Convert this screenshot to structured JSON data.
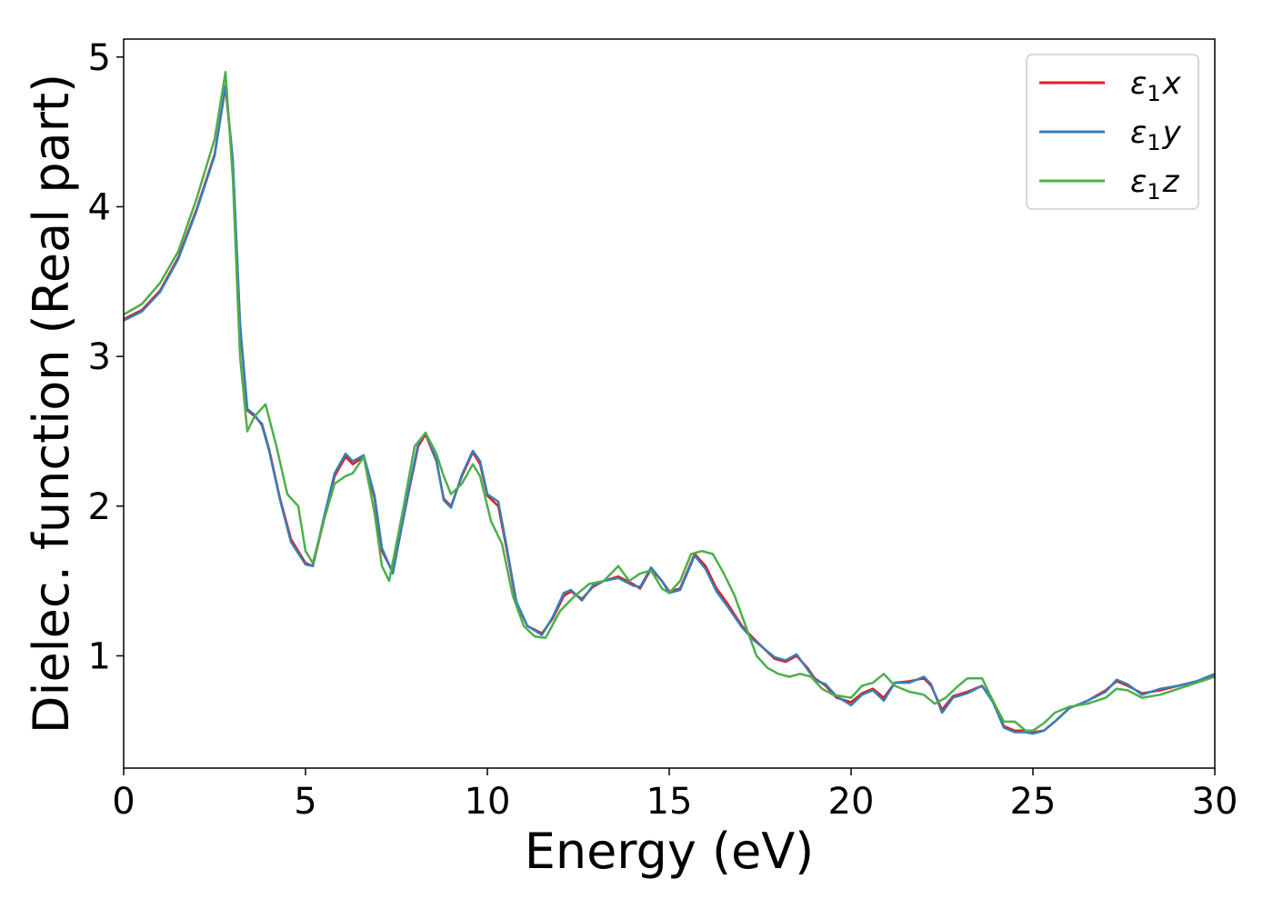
{
  "chart_data": {
    "type": "line",
    "title": "",
    "xlabel": "Energy (eV)",
    "ylabel": "Dielec. function (Real part)",
    "xlim": [
      0,
      30
    ],
    "ylim": [
      0.25,
      5.12
    ],
    "xticks": [
      0,
      5,
      10,
      15,
      20,
      25,
      30
    ],
    "yticks": [
      1,
      2,
      3,
      4,
      5
    ],
    "grid": false,
    "legend_position": "top-right",
    "legend": [
      {
        "base": "ε",
        "sub": "1",
        "axis": "x"
      },
      {
        "base": "ε",
        "sub": "1",
        "axis": "y"
      },
      {
        "base": "ε",
        "sub": "1",
        "axis": "z"
      }
    ],
    "series": [
      {
        "name": "ε1x",
        "color": "#e41a1c",
        "x": [
          0,
          0.5,
          1,
          1.5,
          2,
          2.5,
          2.8,
          3.0,
          3.2,
          3.4,
          3.6,
          3.8,
          4.0,
          4.3,
          4.6,
          5.0,
          5.2,
          5.5,
          5.8,
          6.1,
          6.3,
          6.6,
          6.9,
          7.1,
          7.4,
          7.8,
          8.1,
          8.3,
          8.6,
          8.8,
          9.0,
          9.3,
          9.6,
          9.8,
          10.0,
          10.3,
          10.5,
          10.8,
          11.1,
          11.5,
          11.8,
          12.1,
          12.3,
          12.6,
          12.9,
          13.2,
          13.6,
          14.0,
          14.2,
          14.5,
          14.8,
          15.0,
          15.3,
          15.7,
          16.0,
          16.3,
          16.6,
          17.0,
          17.3,
          17.6,
          17.9,
          18.2,
          18.5,
          18.8,
          19.0,
          19.3,
          19.6,
          20.0,
          20.3,
          20.6,
          20.9,
          21.2,
          21.6,
          22.0,
          22.2,
          22.5,
          22.8,
          23.2,
          23.6,
          23.9,
          24.2,
          24.5,
          24.8,
          25.0,
          25.3,
          25.6,
          26.0,
          26.5,
          27.0,
          27.3,
          27.6,
          28.0,
          28.5,
          29.0,
          29.5,
          30.0
        ],
        "y": [
          3.25,
          3.31,
          3.44,
          3.66,
          3.98,
          4.35,
          4.8,
          4.3,
          3.2,
          2.64,
          2.6,
          2.55,
          2.38,
          2.05,
          1.78,
          1.62,
          1.6,
          1.9,
          2.2,
          2.33,
          2.28,
          2.33,
          2.05,
          1.7,
          1.56,
          2.05,
          2.4,
          2.48,
          2.3,
          2.05,
          2.0,
          2.2,
          2.36,
          2.28,
          2.07,
          2.0,
          1.75,
          1.35,
          1.2,
          1.15,
          1.25,
          1.4,
          1.43,
          1.38,
          1.46,
          1.5,
          1.53,
          1.48,
          1.45,
          1.58,
          1.5,
          1.43,
          1.45,
          1.68,
          1.6,
          1.45,
          1.35,
          1.2,
          1.12,
          1.05,
          0.98,
          0.96,
          1.0,
          0.92,
          0.85,
          0.8,
          0.72,
          0.69,
          0.75,
          0.78,
          0.72,
          0.82,
          0.83,
          0.85,
          0.8,
          0.64,
          0.73,
          0.76,
          0.8,
          0.7,
          0.53,
          0.5,
          0.5,
          0.49,
          0.5,
          0.56,
          0.65,
          0.7,
          0.77,
          0.83,
          0.8,
          0.75,
          0.77,
          0.8,
          0.83,
          0.87
        ]
      },
      {
        "name": "ε1y",
        "color": "#377eb8",
        "x": [
          0,
          0.5,
          1,
          1.5,
          2,
          2.5,
          2.8,
          3.0,
          3.2,
          3.4,
          3.6,
          3.8,
          4.0,
          4.3,
          4.6,
          5.0,
          5.2,
          5.5,
          5.8,
          6.1,
          6.3,
          6.6,
          6.9,
          7.1,
          7.4,
          7.8,
          8.1,
          8.3,
          8.6,
          8.8,
          9.0,
          9.3,
          9.6,
          9.8,
          10.0,
          10.3,
          10.5,
          10.8,
          11.1,
          11.5,
          11.8,
          12.1,
          12.3,
          12.6,
          12.9,
          13.2,
          13.6,
          14.0,
          14.2,
          14.5,
          14.8,
          15.0,
          15.3,
          15.7,
          16.0,
          16.3,
          16.6,
          17.0,
          17.3,
          17.6,
          17.9,
          18.2,
          18.5,
          18.8,
          19.0,
          19.3,
          19.6,
          20.0,
          20.3,
          20.6,
          20.9,
          21.2,
          21.6,
          22.0,
          22.2,
          22.5,
          22.8,
          23.2,
          23.6,
          23.9,
          24.2,
          24.5,
          24.8,
          25.0,
          25.3,
          25.6,
          26.0,
          26.5,
          27.0,
          27.3,
          27.6,
          28.0,
          28.5,
          29.0,
          29.5,
          30.0
        ],
        "y": [
          3.24,
          3.3,
          3.43,
          3.65,
          3.97,
          4.34,
          4.81,
          4.32,
          3.22,
          2.65,
          2.61,
          2.54,
          2.37,
          2.04,
          1.76,
          1.61,
          1.6,
          1.92,
          2.22,
          2.35,
          2.3,
          2.34,
          2.07,
          1.72,
          1.55,
          2.06,
          2.42,
          2.49,
          2.31,
          2.04,
          1.99,
          2.21,
          2.37,
          2.3,
          2.08,
          2.03,
          1.77,
          1.36,
          1.2,
          1.14,
          1.26,
          1.42,
          1.44,
          1.37,
          1.47,
          1.5,
          1.52,
          1.47,
          1.46,
          1.59,
          1.5,
          1.42,
          1.44,
          1.67,
          1.58,
          1.43,
          1.33,
          1.19,
          1.11,
          1.05,
          0.99,
          0.97,
          1.01,
          0.91,
          0.84,
          0.81,
          0.73,
          0.67,
          0.74,
          0.77,
          0.7,
          0.82,
          0.82,
          0.86,
          0.81,
          0.62,
          0.72,
          0.75,
          0.8,
          0.69,
          0.52,
          0.49,
          0.49,
          0.48,
          0.5,
          0.56,
          0.65,
          0.7,
          0.76,
          0.84,
          0.81,
          0.74,
          0.78,
          0.8,
          0.83,
          0.88
        ]
      },
      {
        "name": "ε1z",
        "color": "#4daf4a",
        "x": [
          0,
          0.5,
          1,
          1.5,
          2,
          2.5,
          2.8,
          3.0,
          3.2,
          3.4,
          3.6,
          3.9,
          4.2,
          4.5,
          4.8,
          5.0,
          5.2,
          5.5,
          5.8,
          6.1,
          6.3,
          6.6,
          6.9,
          7.1,
          7.3,
          7.7,
          8.0,
          8.3,
          8.6,
          8.8,
          9.0,
          9.3,
          9.6,
          9.8,
          10.1,
          10.4,
          10.7,
          11.0,
          11.3,
          11.6,
          12.0,
          12.4,
          12.8,
          13.2,
          13.6,
          13.9,
          14.2,
          14.5,
          14.8,
          15.0,
          15.3,
          15.6,
          15.9,
          16.2,
          16.5,
          16.8,
          17.1,
          17.4,
          17.7,
          18.0,
          18.3,
          18.6,
          18.9,
          19.2,
          19.5,
          20.0,
          20.3,
          20.6,
          20.9,
          21.2,
          21.6,
          22.0,
          22.3,
          22.6,
          22.9,
          23.2,
          23.6,
          23.9,
          24.2,
          24.5,
          24.8,
          25.0,
          25.3,
          25.6,
          26.0,
          26.5,
          27.0,
          27.3,
          27.6,
          28.0,
          28.5,
          29.0,
          29.5,
          30.0
        ],
        "y": [
          3.28,
          3.35,
          3.49,
          3.7,
          4.05,
          4.45,
          4.9,
          4.2,
          3.0,
          2.5,
          2.6,
          2.68,
          2.4,
          2.08,
          2.0,
          1.7,
          1.62,
          1.9,
          2.15,
          2.2,
          2.22,
          2.33,
          1.95,
          1.6,
          1.5,
          2.0,
          2.4,
          2.49,
          2.35,
          2.2,
          2.08,
          2.15,
          2.28,
          2.2,
          1.9,
          1.75,
          1.4,
          1.2,
          1.13,
          1.12,
          1.3,
          1.4,
          1.48,
          1.5,
          1.6,
          1.5,
          1.55,
          1.57,
          1.45,
          1.42,
          1.5,
          1.68,
          1.7,
          1.68,
          1.55,
          1.4,
          1.2,
          1.0,
          0.92,
          0.88,
          0.86,
          0.88,
          0.86,
          0.78,
          0.74,
          0.72,
          0.8,
          0.82,
          0.88,
          0.8,
          0.76,
          0.74,
          0.68,
          0.72,
          0.79,
          0.85,
          0.85,
          0.7,
          0.56,
          0.56,
          0.5,
          0.5,
          0.55,
          0.62,
          0.66,
          0.68,
          0.72,
          0.78,
          0.77,
          0.72,
          0.74,
          0.78,
          0.82,
          0.86
        ]
      }
    ]
  }
}
